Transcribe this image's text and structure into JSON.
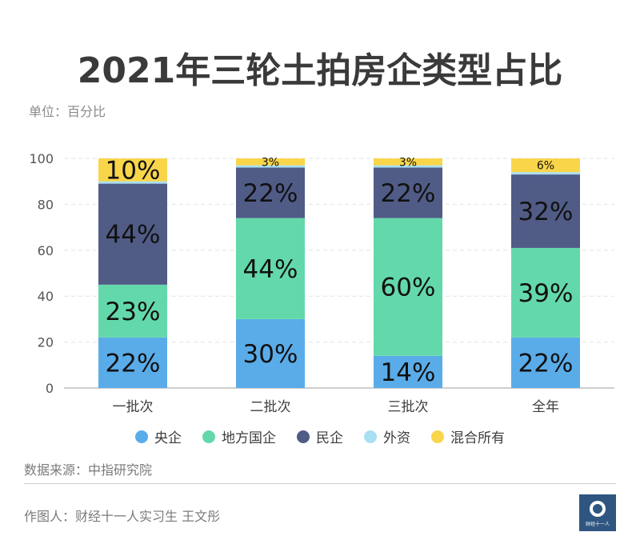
{
  "header": {
    "title": "2021年三轮土拍房企类型占比",
    "unit": "单位：百分比"
  },
  "chart_data": {
    "type": "bar",
    "stacked": true,
    "title": "2021年三轮土拍房企类型占比",
    "categories": [
      "一批次",
      "二批次",
      "三批次",
      "全年"
    ],
    "ylim": [
      0,
      100
    ],
    "yticks": [
      0,
      20,
      40,
      60,
      80,
      100
    ],
    "grid": true,
    "legend_position": "bottom",
    "series": [
      {
        "name": "央企",
        "color": "#5aace9",
        "values": [
          22,
          30,
          14,
          22
        ],
        "labels": [
          "22%",
          "30%",
          "14%",
          "22%"
        ]
      },
      {
        "name": "地方国企",
        "color": "#63d9ab",
        "values": [
          23,
          44,
          60,
          39
        ],
        "labels": [
          "23%",
          "44%",
          "60%",
          "39%"
        ]
      },
      {
        "name": "民企",
        "color": "#505c86",
        "values": [
          44,
          22,
          22,
          32
        ],
        "labels": [
          "44%",
          "22%",
          "22%",
          "32%"
        ]
      },
      {
        "name": "外资",
        "color": "#a9dff2",
        "values": [
          1,
          1,
          1,
          1
        ],
        "labels": [
          "",
          "",
          "",
          ""
        ]
      },
      {
        "name": "混合所有",
        "color": "#f9d54a",
        "values": [
          10,
          3,
          3,
          6
        ],
        "labels": [
          "10%",
          "3%",
          "3%",
          "6%"
        ]
      }
    ]
  },
  "legend": [
    {
      "label": "央企",
      "color": "#5aace9"
    },
    {
      "label": "地方国企",
      "color": "#63d9ab"
    },
    {
      "label": "民企",
      "color": "#505c86"
    },
    {
      "label": "外资",
      "color": "#a9dff2"
    },
    {
      "label": "混合所有",
      "color": "#f9d54a"
    }
  ],
  "footer": {
    "source": "数据来源：中指研究院",
    "author": "作图人：财经十一人实习生 王文彤",
    "logo_text": "财经十一人"
  }
}
